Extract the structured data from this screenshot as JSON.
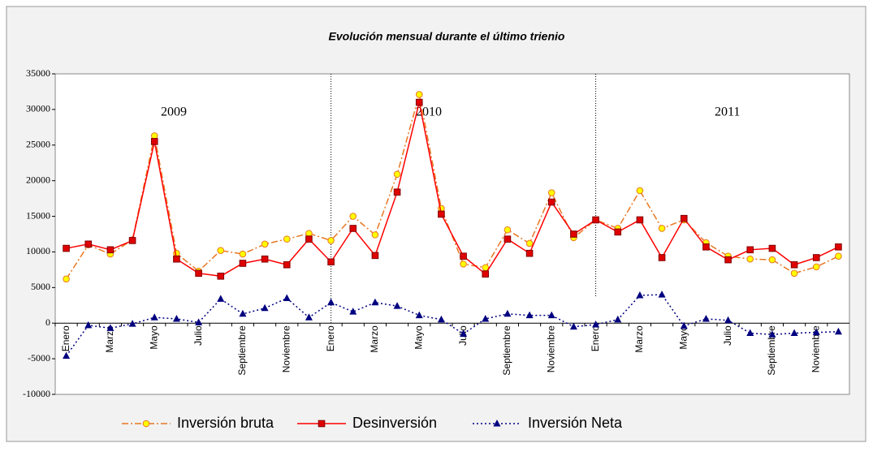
{
  "chart_data": {
    "type": "line",
    "title": "Evolución mensual durante el último trienio",
    "categories": [
      "Enero",
      null,
      "Marzo",
      null,
      "Mayo",
      null,
      "Julio",
      null,
      "Septiembre",
      null,
      "Noviembre",
      null,
      "Enero",
      null,
      "Marzo",
      null,
      "Mayo",
      null,
      "Julio",
      null,
      "Septiembre",
      null,
      "Noviembre",
      null,
      "Enero",
      null,
      "Marzo",
      null,
      "Mayo",
      null,
      "Julio",
      null,
      "Septiembre",
      null,
      "Noviembre",
      null
    ],
    "series": [
      {
        "name": "Inversión bruta",
        "color": "#e87722",
        "values": [
          6200,
          11000,
          9700,
          11700,
          26300,
          9800,
          7300,
          10200,
          9700,
          11100,
          11800,
          12600,
          11600,
          15000,
          12400,
          20900,
          32100,
          16100,
          8300,
          7800,
          13100,
          11200,
          18300,
          12000,
          14500,
          13300,
          18600,
          13300,
          14500,
          11300,
          9400,
          9000,
          8900,
          7000,
          7900,
          9400
        ]
      },
      {
        "name": "Desinversión",
        "color": "#ff0000",
        "values": [
          10500,
          11100,
          10300,
          11600,
          25500,
          9000,
          7000,
          6600,
          8400,
          9000,
          8200,
          11800,
          8600,
          13300,
          9500,
          18400,
          31000,
          15300,
          9400,
          6900,
          11800,
          9800,
          17000,
          12500,
          14500,
          12800,
          14500,
          9200,
          14700,
          10700,
          8900,
          10300,
          10500,
          8200,
          9200,
          10700
        ]
      },
      {
        "name": "Inversión Neta",
        "color": "#000080",
        "values": [
          -4600,
          -300,
          -700,
          -100,
          800,
          600,
          100,
          3400,
          1300,
          2100,
          3500,
          800,
          2900,
          1600,
          2900,
          2400,
          1100,
          500,
          -1500,
          600,
          1300,
          1100,
          1100,
          -500,
          -200,
          500,
          3900,
          4000,
          -400,
          600,
          400,
          -1400,
          -1600,
          -1400,
          -1300,
          -1200
        ]
      }
    ],
    "annotations": [
      "2009",
      "2010",
      "2011"
    ],
    "ylim": [
      -10000,
      35000
    ],
    "yticks": [
      -10000,
      -5000,
      0,
      5000,
      10000,
      15000,
      20000,
      25000,
      30000,
      35000
    ],
    "grid": false,
    "legend": "bottom"
  }
}
